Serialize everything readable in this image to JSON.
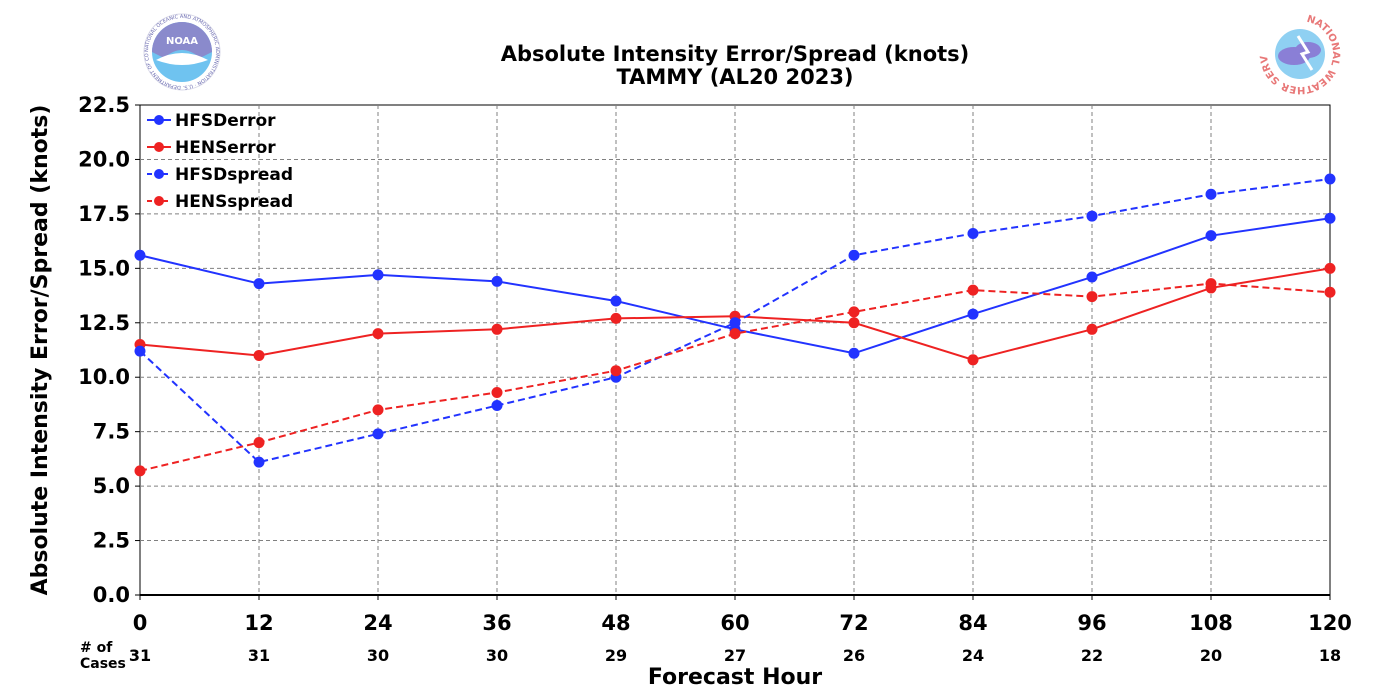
{
  "chart_data": {
    "type": "line",
    "title": "Absolute Intensity Error/Spread (knots)",
    "subtitle": "TAMMY (AL20 2023)",
    "xlabel": "Forecast Hour",
    "ylabel": "Absolute Intensity Error/Spread (knots)",
    "x": [
      0,
      12,
      24,
      36,
      48,
      60,
      72,
      84,
      96,
      108,
      120
    ],
    "xticks": [
      "0",
      "12",
      "24",
      "36",
      "48",
      "60",
      "72",
      "84",
      "96",
      "108",
      "120"
    ],
    "yticks": [
      "0.0",
      "2.5",
      "5.0",
      "7.5",
      "10.0",
      "12.5",
      "15.0",
      "17.5",
      "20.0",
      "22.5"
    ],
    "ylim": [
      0,
      22.5
    ],
    "xlim": [
      0,
      120
    ],
    "grid": true,
    "legend_position": "top-left",
    "cases_header": [
      "# of",
      "Cases"
    ],
    "cases": [
      "31",
      "31",
      "30",
      "30",
      "29",
      "27",
      "26",
      "24",
      "22",
      "20",
      "18"
    ],
    "series": [
      {
        "name": "HFSDerror",
        "color": "#2233ff",
        "dashed": false,
        "values": [
          15.6,
          14.3,
          14.7,
          14.4,
          13.5,
          12.2,
          11.1,
          12.9,
          14.6,
          16.5,
          17.3
        ]
      },
      {
        "name": "HENSerror",
        "color": "#ee2222",
        "dashed": false,
        "values": [
          11.5,
          11.0,
          12.0,
          12.2,
          12.7,
          12.8,
          12.5,
          10.8,
          12.2,
          14.1,
          15.0
        ]
      },
      {
        "name": "HFSDspread",
        "color": "#2233ff",
        "dashed": true,
        "values": [
          11.2,
          6.1,
          7.4,
          8.7,
          10.0,
          12.5,
          15.6,
          16.6,
          17.4,
          18.4,
          19.1
        ]
      },
      {
        "name": "HENSspread",
        "color": "#ee2222",
        "dashed": true,
        "values": [
          5.7,
          7.0,
          8.5,
          9.3,
          10.3,
          12.0,
          13.0,
          14.0,
          13.7,
          14.3,
          13.9
        ]
      }
    ]
  },
  "logos": {
    "left": {
      "text": "NOAA",
      "ring_text": "NATIONAL OCEANIC AND ATMOSPHERIC ADMINISTRATION · U.S. DEPARTMENT OF COMMERCE"
    },
    "right": {
      "ring_text": "NATIONAL WEATHER SERVICE"
    }
  }
}
